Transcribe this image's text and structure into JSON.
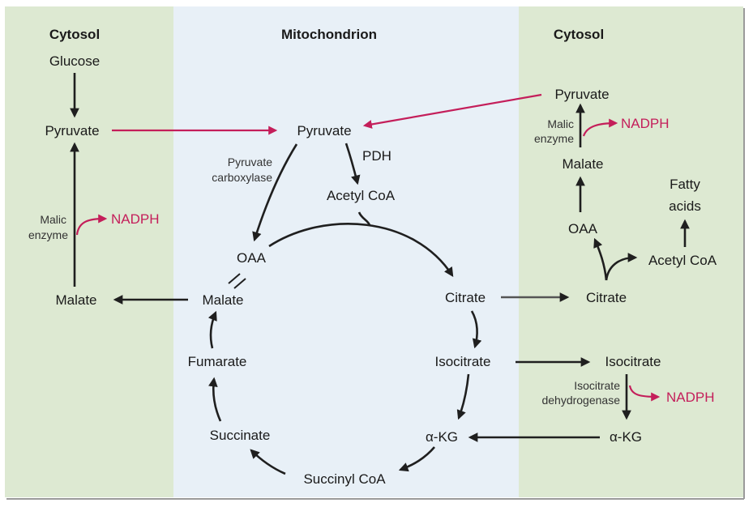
{
  "colors": {
    "cytosol_bg": "#dde9d2",
    "mito_bg": "#e8f0f7",
    "arrow": "#1f1f1f",
    "nadph": "#c41e5a"
  },
  "panels": {
    "left_title": "Cytosol",
    "middle_title": "Mitochondrion",
    "right_title": "Cytosol"
  },
  "left": {
    "glucose": "Glucose",
    "pyruvate": "Pyruvate",
    "malic_enzyme_1": "Malic",
    "malic_enzyme_2": "enzyme",
    "nadph": "NADPH",
    "malate": "Malate"
  },
  "middle": {
    "pyruvate": "Pyruvate",
    "pdh": "PDH",
    "pyruvate_carboxylase_1": "Pyruvate",
    "pyruvate_carboxylase_2": "carboxylase",
    "acetyl_coa": "Acetyl CoA",
    "oaa": "OAA",
    "citrate": "Citrate",
    "malate": "Malate",
    "isocitrate": "Isocitrate",
    "fumarate": "Fumarate",
    "akg": "α-KG",
    "succinate": "Succinate",
    "succinyl_coa": "Succinyl CoA"
  },
  "right": {
    "pyruvate": "Pyruvate",
    "malic_enzyme_1": "Malic",
    "malic_enzyme_2": "enzyme",
    "nadph_1": "NADPH",
    "malate": "Malate",
    "fatty_acids_1": "Fatty",
    "fatty_acids_2": "acids",
    "oaa": "OAA",
    "acetyl_coa": "Acetyl CoA",
    "citrate": "Citrate",
    "isocitrate": "Isocitrate",
    "idh_1": "Isocitrate",
    "idh_2": "dehydrogenase",
    "nadph_2": "NADPH",
    "akg": "α-KG"
  }
}
